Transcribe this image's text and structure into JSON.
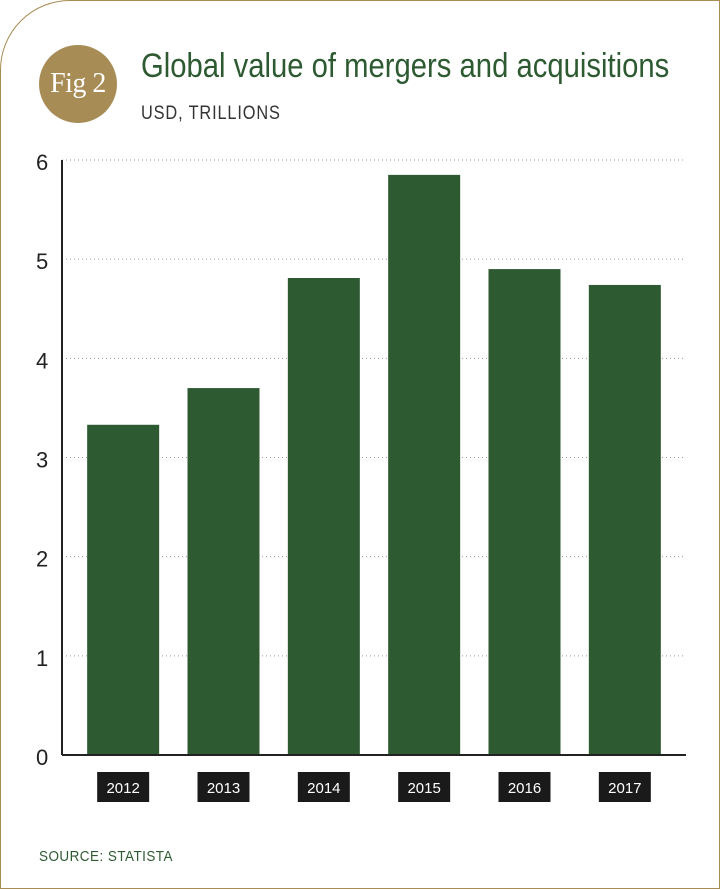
{
  "figure": {
    "badge": "Fig 2",
    "title": "Global value of mergers and acquisitions",
    "subtitle": "USD, TRILLIONS",
    "source": "SOURCE: STATISTA"
  },
  "colors": {
    "bar": "#2e5a32",
    "accent": "#a88c55",
    "label_box": "#1a1a1a",
    "grid": "#9a9a9a"
  },
  "chart_data": {
    "type": "bar",
    "categories": [
      "2012",
      "2013",
      "2014",
      "2015",
      "2016",
      "2017"
    ],
    "values": [
      3.33,
      3.7,
      4.81,
      5.85,
      4.9,
      4.74
    ],
    "yticks": [
      "0",
      "1",
      "2",
      "3",
      "4",
      "5",
      "6"
    ],
    "ylim": [
      0,
      6
    ],
    "grid": true
  }
}
